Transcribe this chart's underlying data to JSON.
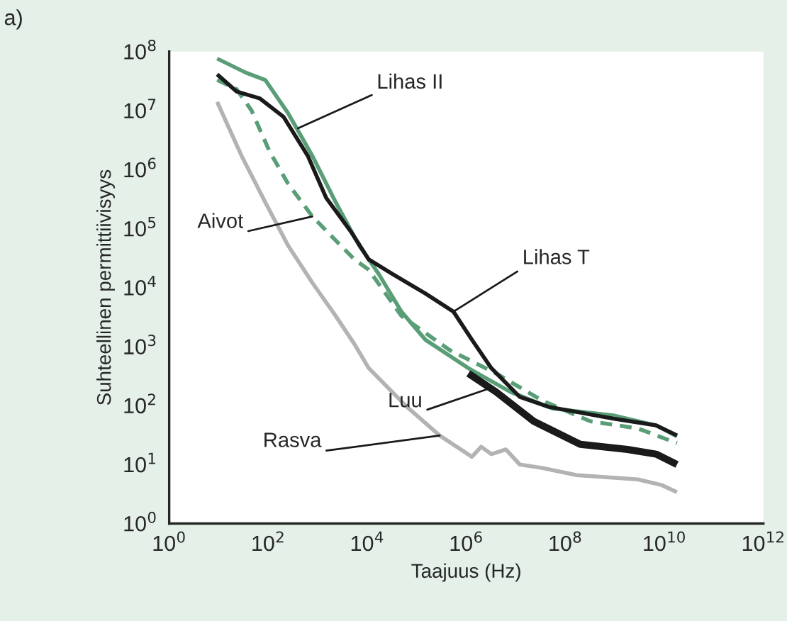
{
  "chart_data": {
    "type": "line",
    "xlabel": "Taajuus (Hz)",
    "ylabel": "Suhteellinen permittiivisyys",
    "log": "xy",
    "grid": false,
    "legend": false,
    "marker": "none",
    "xlim": [
      1,
      1000000000000.0
    ],
    "ylim": [
      1,
      100000000.0
    ],
    "xticks": [
      {
        "value": 1,
        "label": "10$^{0}$"
      },
      {
        "value": 100,
        "label": "10$^{2}$"
      },
      {
        "value": 10000,
        "label": "10$^{4}$"
      },
      {
        "value": 1000000,
        "label": "10$^{6}$"
      },
      {
        "value": 100000000,
        "label": "10$^{8}$"
      },
      {
        "value": 10000000000,
        "label": "10$^{10}$"
      },
      {
        "value": 1000000000000,
        "label": "10$^{12}$"
      }
    ],
    "yticks": [
      {
        "value": 1,
        "label": "10$^{0}$"
      },
      {
        "value": 10,
        "label": "10$^{1}$"
      },
      {
        "value": 100,
        "label": "10$^{2}$"
      },
      {
        "value": 1000,
        "label": "10$^{3}$"
      },
      {
        "value": 10000,
        "label": "10$^{4}$"
      },
      {
        "value": 100000,
        "label": "10$^{5}$"
      },
      {
        "value": 1000000,
        "label": "10$^{6}$"
      },
      {
        "value": 10000000,
        "label": "10$^{7}$"
      },
      {
        "value": 100000000,
        "label": "10$^{8}$"
      }
    ],
    "series": [
      {
        "color": "#b3b3b3",
        "line_style": "solid",
        "x": [
          9.3,
          29,
          87,
          250,
          780,
          2300,
          5500,
          10700,
          63000,
          290000,
          1300000,
          2000000,
          3200000,
          6300000,
          12000000,
          35000000,
          170000000,
          2900000000,
          8700000000,
          18000000000
        ],
        "values": [
          14000000,
          1700000,
          280000,
          52000,
          12000,
          3300,
          1100,
          430,
          95,
          31,
          13.5,
          20,
          15,
          18,
          10,
          8.7,
          6.6,
          5.6,
          4.5,
          3.4
        ]
      },
      {
        "color": "#5a9e78",
        "line_style": "dashed",
        "x": [
          9.3,
          23,
          46,
          107,
          250,
          780,
          2300,
          5500,
          10700,
          49000,
          460000,
          4000000,
          35000000,
          320000000,
          2900000000,
          18000000000
        ],
        "values": [
          33000000,
          23000000,
          10000000,
          2000000,
          580000,
          160000,
          63000,
          30000,
          20000,
          3300,
          870,
          350,
          120,
          54,
          41,
          23
        ]
      },
      {
        "color": "#5a9e78",
        "line_style": "solid",
        "x": [
          9.3,
          35,
          87,
          250,
          780,
          2300,
          6800,
          17000,
          49000,
          150000,
          1100000,
          7800000,
          55000000,
          930000000,
          6800000000,
          18000000000
        ],
        "values": [
          76000000,
          44000000,
          33000000,
          9100000,
          1700000,
          280000,
          52000,
          17000,
          3900,
          1300,
          430,
          170,
          89,
          68,
          46,
          30
        ]
      },
      {
        "color": "#1a1a1a",
        "line_style": "solid",
        "x": [
          9.3,
          23,
          68,
          204,
          630,
          1480,
          4570,
          10700,
          32000,
          150000,
          550000,
          1300000,
          3200000,
          12000000,
          46000000,
          930000000,
          6800000000,
          18000000000
        ],
        "values": [
          41000000,
          21000000,
          16000000,
          7800000,
          1700000,
          330000,
          91000,
          30000,
          17000,
          7900,
          3900,
          1300,
          430,
          140,
          95,
          60,
          46,
          31
        ]
      },
      {
        "color": "#1a1a1a",
        "line_style": "solid",
        "x": [
          1100000,
          4000000,
          23000000,
          200000000,
          1800000000,
          6800000000,
          18000000000
        ],
        "values": [
          350,
          170,
          54,
          22,
          18,
          15,
          10
        ]
      }
    ],
    "annotations": [
      "a)",
      {
        "text": "Lihas II",
        "x": 398,
        "y": 5000000
      },
      {
        "text": "Aivot",
        "x": 776,
        "y": 160000
      },
      {
        "text": "Lihas T",
        "x": 550000,
        "y": 3900
      },
      {
        "text": "Luu",
        "x": 3200000,
        "y": 200
      },
      {
        "text": "Rasva",
        "x": 290000,
        "y": 31
      }
    ]
  }
}
